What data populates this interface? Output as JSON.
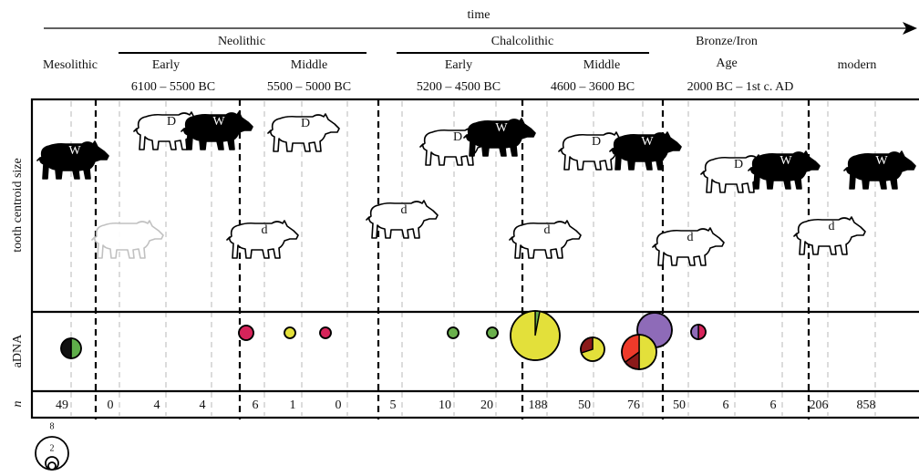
{
  "header": {
    "time": "time",
    "periods": [
      {
        "name": "Mesolithic"
      },
      {
        "name": "Neolithic",
        "phases": [
          {
            "name": "Early",
            "dates": "6100 – 5500 BC"
          },
          {
            "name": "Middle",
            "dates": "5500 – 5000 BC"
          }
        ]
      },
      {
        "name": "Chalcolithic",
        "phases": [
          {
            "name": "Early",
            "dates": "5200 – 4500 BC"
          },
          {
            "name": "Middle",
            "dates": "4600 – 3600 BC"
          }
        ]
      },
      {
        "name": "Bronze/Iron",
        "name2": "Age",
        "dates": "2000 BC – 1st c. AD"
      },
      {
        "name": "modern"
      }
    ]
  },
  "axis_labels": {
    "size": "tooth centroid size",
    "adna": "aDNA",
    "n": "n"
  },
  "n": [
    "49",
    "0",
    "4",
    "4",
    "6",
    "1",
    "0",
    "5",
    "10",
    "20",
    "188",
    "50",
    "76",
    "50",
    "6",
    "6",
    "206",
    "858"
  ],
  "pigs": [
    {
      "label": "W",
      "color": "#000000"
    },
    {
      "color": "#ffffff"
    },
    {
      "label": "D",
      "color": "#ffffff"
    },
    {
      "label": "W",
      "color": "#000000"
    },
    {
      "label": "d",
      "color": "#ffffff"
    },
    {
      "label": "D",
      "color": "#ffffff"
    },
    {
      "label": "d",
      "color": "#ffffff"
    },
    {
      "label": "D",
      "color": "#ffffff"
    },
    {
      "label": "W",
      "color": "#000000"
    },
    {
      "label": "d",
      "color": "#ffffff"
    },
    {
      "label": "D",
      "color": "#ffffff"
    },
    {
      "label": "W",
      "color": "#000000"
    },
    {
      "label": "d",
      "color": "#ffffff"
    },
    {
      "label": "D",
      "color": "#ffffff"
    },
    {
      "label": "W",
      "color": "#000000"
    },
    {
      "label": "d",
      "color": "#ffffff"
    },
    {
      "label": "W",
      "color": "#000000"
    }
  ],
  "pies": [
    {
      "slices": [
        {
          "value": 50,
          "color": "#5fae4a"
        },
        {
          "value": 50,
          "color": "#111111"
        }
      ]
    },
    {
      "slices": [
        {
          "value": 100,
          "color": "#d6245a"
        }
      ]
    },
    {
      "slices": [
        {
          "value": 100,
          "color": "#e3e03a"
        }
      ]
    },
    {
      "slices": [
        {
          "value": 100,
          "color": "#d6245a"
        }
      ]
    },
    {
      "slices": [
        {
          "value": 100,
          "color": "#6ab04c"
        }
      ]
    },
    {
      "slices": [
        {
          "value": 100,
          "color": "#6ab04c"
        }
      ]
    },
    {
      "slices": [
        {
          "value": 3,
          "color": "#6ab04c"
        },
        {
          "value": 97,
          "color": "#e3e03a"
        }
      ]
    },
    {
      "slices": [
        {
          "value": 70,
          "color": "#e3e03a"
        },
        {
          "value": 30,
          "color": "#8b1a1a"
        }
      ]
    },
    {
      "slices": [
        {
          "value": 100,
          "color": "#8e6bb8"
        }
      ]
    },
    {
      "slices": [
        {
          "value": 50,
          "color": "#e3e03a"
        },
        {
          "value": 15,
          "color": "#8b1a1a"
        },
        {
          "value": 35,
          "color": "#ee3a2a"
        }
      ]
    },
    {
      "slices": [
        {
          "value": 50,
          "color": "#d6245a"
        },
        {
          "value": 50,
          "color": "#8e6bb8"
        }
      ]
    }
  ],
  "legend": [
    "8",
    "2"
  ]
}
